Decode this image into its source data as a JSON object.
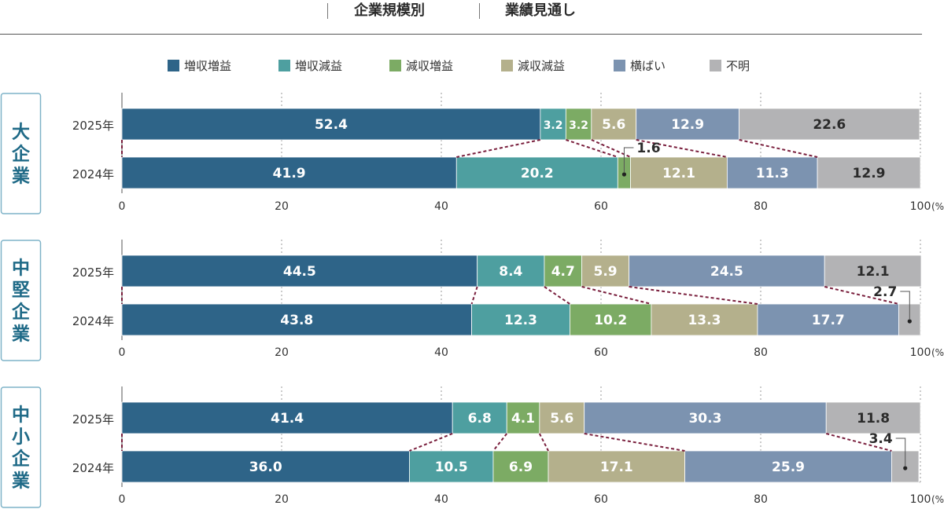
{
  "header": {
    "title_left": "企業規模別",
    "title_right": "業績見通し"
  },
  "legend": [
    {
      "label": "増収増益",
      "color": "#2e6488"
    },
    {
      "label": "増収減益",
      "color": "#4e9fa0"
    },
    {
      "label": "減収増益",
      "color": "#7cab64"
    },
    {
      "label": "減収減益",
      "color": "#b4b08c"
    },
    {
      "label": "横ばい",
      "color": "#7c93b0"
    },
    {
      "label": "不明",
      "color": "#b3b3b5"
    }
  ],
  "chart_data": {
    "type": "bar",
    "orientation": "horizontal",
    "stacked": true,
    "xlim": [
      0,
      100
    ],
    "x_ticks": [
      "0",
      "20",
      "40",
      "60",
      "80",
      "100"
    ],
    "x_unit": "(%)",
    "grid": "dashed vertical",
    "legend_position": "top",
    "categories": [
      "増収増益",
      "増収減益",
      "減収増益",
      "減収減益",
      "横ばい",
      "不明"
    ],
    "panels": [
      {
        "group": "大企業",
        "rows": [
          {
            "label": "2025年",
            "values": [
              52.4,
              3.2,
              3.2,
              5.6,
              12.9,
              22.6
            ]
          },
          {
            "label": "2024年",
            "values": [
              41.9,
              20.2,
              1.6,
              12.1,
              11.3,
              12.9
            ]
          }
        ],
        "callouts": [
          {
            "row": 1,
            "segment": 2,
            "text": "1.6"
          }
        ]
      },
      {
        "group": "中堅企業",
        "rows": [
          {
            "label": "2025年",
            "values": [
              44.5,
              8.4,
              4.7,
              5.9,
              24.5,
              12.1
            ]
          },
          {
            "label": "2024年",
            "values": [
              43.8,
              12.3,
              10.2,
              13.3,
              17.7,
              2.7
            ]
          }
        ],
        "callouts": [
          {
            "row": 1,
            "segment": 5,
            "text": "2.7"
          }
        ]
      },
      {
        "group": "中小企業",
        "rows": [
          {
            "label": "2025年",
            "values": [
              41.4,
              6.8,
              4.1,
              5.6,
              30.3,
              11.8
            ]
          },
          {
            "label": "2024年",
            "values": [
              36.0,
              10.5,
              6.9,
              17.1,
              25.9,
              3.4
            ]
          }
        ],
        "callouts": [
          {
            "row": 1,
            "segment": 5,
            "text": "3.4"
          }
        ]
      }
    ]
  },
  "label_colors": {
    "light": "#ffffff",
    "dark": "#2b2b2b"
  },
  "connector_color": "#7a1f3d",
  "group_box_color": "#7fb3c8",
  "group_text_color": "#1f6a87"
}
